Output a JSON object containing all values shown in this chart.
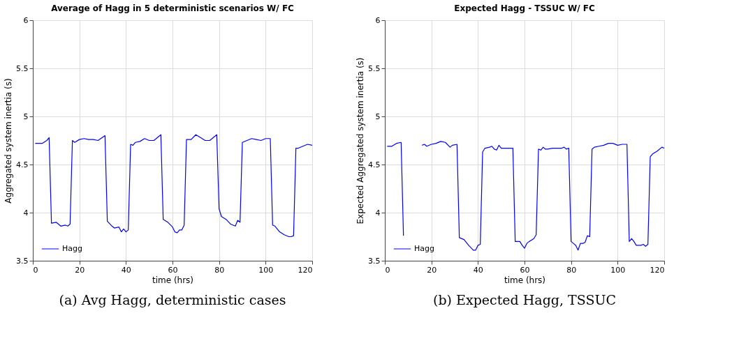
{
  "chart_data": [
    {
      "type": "line",
      "title": "Average of Hagg in 5 deterministic scenarios W/ FC",
      "xlabel": "time (hrs)",
      "ylabel": "Aggregated system inertia (s)",
      "xlim": [
        0,
        120
      ],
      "xticks": [
        0,
        20,
        40,
        60,
        80,
        100,
        120
      ],
      "ylim": [
        3.5,
        6
      ],
      "yticks": [
        3.5,
        4,
        4.5,
        5,
        5.5,
        6
      ],
      "grid": true,
      "legend": "bottom left",
      "annotations": [
        "(a) Avg Hagg, deterministic cases"
      ],
      "x": [
        1,
        4,
        6,
        7,
        8,
        10,
        12,
        14,
        15,
        16,
        17,
        18,
        20,
        22,
        24,
        26,
        28,
        31,
        32,
        34,
        35,
        37,
        38,
        39,
        40,
        41,
        42,
        43,
        44,
        46,
        48,
        50,
        52,
        55,
        56,
        58,
        60,
        61,
        62,
        63,
        64,
        65,
        66,
        68,
        70,
        72,
        74,
        76,
        79,
        80,
        81,
        83,
        85,
        86,
        87,
        88,
        89,
        90,
        92,
        94,
        96,
        98,
        100,
        102,
        103,
        104,
        106,
        108,
        110,
        111,
        112,
        113,
        114,
        116,
        118,
        120
      ],
      "series": [
        {
          "name": "Hagg",
          "color": "#0000ff",
          "values": [
            4.72,
            4.72,
            4.75,
            4.78,
            3.89,
            3.9,
            3.86,
            3.87,
            3.86,
            3.88,
            4.75,
            4.73,
            4.76,
            4.77,
            4.76,
            4.76,
            4.75,
            4.8,
            3.91,
            3.86,
            3.84,
            3.85,
            3.8,
            3.83,
            3.8,
            3.82,
            4.71,
            4.7,
            4.73,
            4.74,
            4.77,
            4.75,
            4.75,
            4.81,
            3.93,
            3.9,
            3.85,
            3.8,
            3.79,
            3.82,
            3.82,
            3.87,
            4.76,
            4.76,
            4.81,
            4.78,
            4.75,
            4.75,
            4.81,
            4.04,
            3.96,
            3.93,
            3.88,
            3.87,
            3.86,
            3.92,
            3.9,
            4.73,
            4.75,
            4.77,
            4.76,
            4.75,
            4.77,
            4.77,
            3.87,
            3.86,
            3.8,
            3.77,
            3.75,
            3.75,
            3.76,
            4.67,
            4.67,
            4.69,
            4.71,
            4.7
          ]
        }
      ]
    },
    {
      "type": "line",
      "title": "Expected Hagg - TSSUC W/ FC",
      "xlabel": "time (hrs)",
      "ylabel": "Expected Aggregated system inertia (s)",
      "xlim": [
        0,
        120
      ],
      "xticks": [
        0,
        20,
        40,
        60,
        80,
        100,
        120
      ],
      "ylim": [
        3.5,
        6
      ],
      "yticks": [
        3.5,
        4,
        4.5,
        5,
        5.5,
        6
      ],
      "grid": true,
      "legend": "bottom left",
      "annotations": [
        "(b) Expected Hagg, TSSUC"
      ],
      "x": [
        1,
        3,
        5,
        7,
        8,
        12,
        16,
        17,
        18,
        20,
        22,
        24,
        26,
        28,
        29,
        31,
        32,
        34,
        36,
        38,
        39,
        40,
        41,
        42,
        43,
        45,
        46,
        47,
        48,
        49,
        50,
        52,
        54,
        55,
        56,
        58,
        59,
        60,
        61,
        62,
        64,
        65,
        66,
        67,
        68,
        69,
        70,
        72,
        74,
        76,
        77,
        78,
        79,
        80,
        81,
        82,
        83,
        84,
        85,
        86,
        87,
        88,
        89,
        90,
        92,
        94,
        96,
        98,
        100,
        102,
        104,
        105,
        106,
        107,
        108,
        110,
        111,
        112,
        113,
        114,
        115,
        117,
        119,
        120
      ],
      "series": [
        {
          "name": "Hagg",
          "color": "#0000ff",
          "values": [
            4.69,
            4.69,
            4.72,
            4.73,
            3.76,
            null,
            4.7,
            4.71,
            4.69,
            4.71,
            4.72,
            4.74,
            4.73,
            4.68,
            4.7,
            4.71,
            3.74,
            3.72,
            3.66,
            3.61,
            3.61,
            3.66,
            3.67,
            4.63,
            4.67,
            4.68,
            4.69,
            4.66,
            4.65,
            4.7,
            4.67,
            4.67,
            4.67,
            4.67,
            3.7,
            3.7,
            3.66,
            3.63,
            3.68,
            3.7,
            3.73,
            3.77,
            4.66,
            4.65,
            4.68,
            4.66,
            4.66,
            4.67,
            4.67,
            4.67,
            4.68,
            4.66,
            4.67,
            3.7,
            3.68,
            3.66,
            3.61,
            3.68,
            3.68,
            3.69,
            3.76,
            3.75,
            4.66,
            4.68,
            4.69,
            4.7,
            4.72,
            4.72,
            4.7,
            4.71,
            4.71,
            3.7,
            3.73,
            3.7,
            3.66,
            3.66,
            3.67,
            3.65,
            3.67,
            4.58,
            4.61,
            4.64,
            4.68,
            4.67
          ]
        }
      ]
    }
  ]
}
